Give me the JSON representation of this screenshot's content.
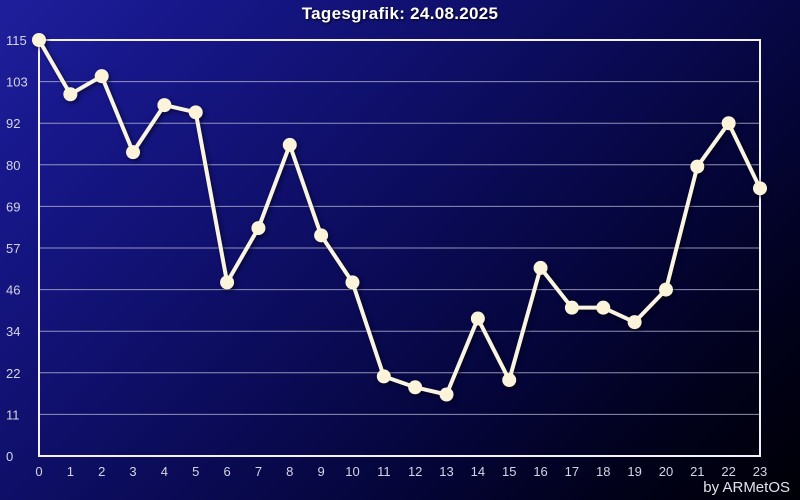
{
  "window": {
    "title": "Tagesgrafik: 24.08.2025"
  },
  "footer": {
    "credit": "by ARMetOS"
  },
  "chart_data": {
    "type": "line",
    "title": "Tagesgrafik: 24.08.2025",
    "xlabel": "",
    "ylabel": "",
    "x_tick_labels": [
      "0",
      "1",
      "2",
      "3",
      "4",
      "5",
      "6",
      "7",
      "8",
      "9",
      "10",
      "11",
      "12",
      "13",
      "14",
      "15",
      "16",
      "17",
      "18",
      "19",
      "20",
      "21",
      "22",
      "23"
    ],
    "values": [
      115,
      100,
      105,
      84,
      97,
      95,
      48,
      63,
      86,
      61,
      48,
      22,
      19,
      17,
      38,
      21,
      52,
      41,
      41,
      37,
      46,
      80,
      92,
      74
    ],
    "y_tick_labels": [
      "115",
      "103",
      "92",
      "80",
      "69",
      "57",
      "46",
      "34",
      "22",
      "11",
      "0"
    ],
    "ylim": [
      0,
      115
    ],
    "grid": true,
    "legend": "none",
    "colors": {
      "line": "#faf5e0",
      "point": "#fbf4da",
      "grid": "#b2b4d0",
      "frame": "#f2f2f8",
      "tick_text": "#d4d5e4",
      "background_top_left": "#1f1f9c",
      "background_bottom_right": "#000006",
      "title_text": "#ffffff"
    }
  }
}
